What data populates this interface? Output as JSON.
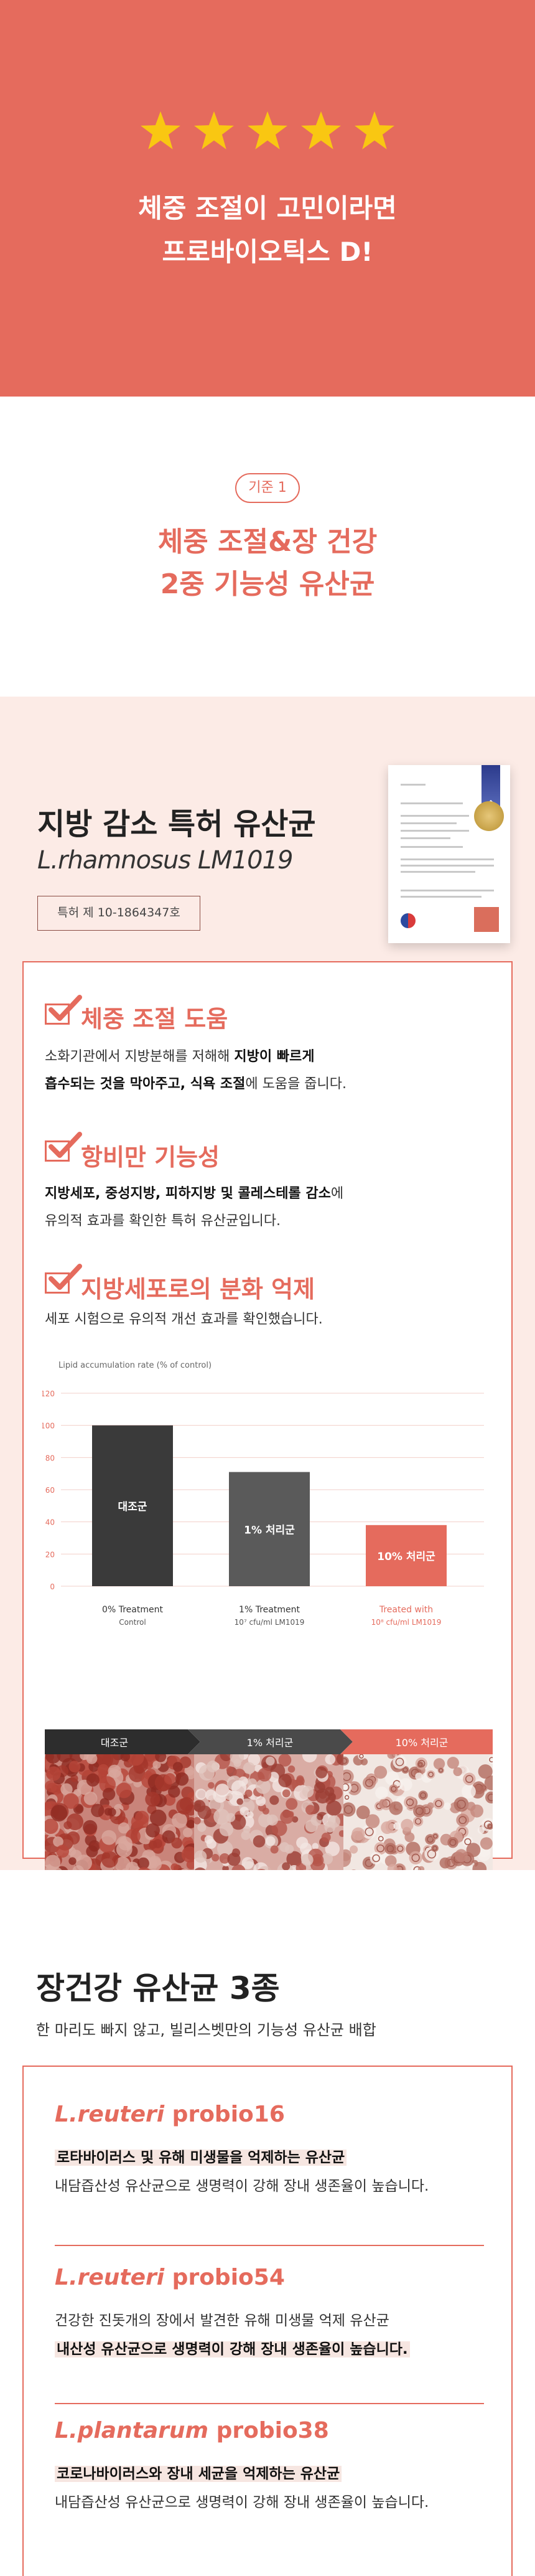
{
  "hero": {
    "rating_stars": 5,
    "line1": "체중 조절이 고민이라면",
    "line2": "프로바이오틱스 D!"
  },
  "criterion": {
    "badge": "기준 1",
    "line1": "체중 조절&장 건강",
    "line2": "2중 기능성 유산균"
  },
  "patent": {
    "heading": "지방 감소 특허 유산균",
    "strain": "L.rhamnosus LM1019",
    "patent_number": "특허 제 10-1864347호",
    "features": [
      {
        "title": "체중 조절 도움",
        "desc_1a": "소화기관에서 지방분해를 저해해 ",
        "desc_1b": "지방이 빠르게",
        "desc_2a": "흡수되는 것을 막아주고, 식욕 조절에 도움을 줍니다.",
        "desc_2b": ""
      },
      {
        "title": "항비만 기능성",
        "desc_1a": "",
        "desc_1b": "지방세포, 중성지방, 피하지방 및 콜레스테롤 감소",
        "desc_1c": "에",
        "desc_2a": "유의적 효과를 확인한 특허 유산균입니다."
      },
      {
        "title": "지방세포로의 분화 억제",
        "desc_1a": "세포 시험으로 유의적 개선 효과를 확인했습니다."
      }
    ],
    "micro_labels": [
      "대조군",
      "1% 처리군",
      "10% 처리군"
    ]
  },
  "chart_data": {
    "type": "bar",
    "ylabel": "Lipid accumulation rate (% of control)",
    "ylim": [
      0,
      120
    ],
    "yticks": [
      0,
      20,
      40,
      60,
      80,
      100,
      120
    ],
    "categories": [
      "대조군",
      "1% 처리군",
      "10% 처리군"
    ],
    "values": [
      100,
      71,
      38
    ],
    "bar_colors": [
      "#3a3a3a",
      "#5a5a5a",
      "#e56b5d"
    ],
    "xlabels": [
      {
        "line1": "0% Treatment",
        "line2": "Control"
      },
      {
        "line1": "1% Treatment",
        "line2": "10⁷ cfu/ml LM1019"
      },
      {
        "line1": "Treated with",
        "line2": "10⁸ cfu/ml LM1019"
      }
    ]
  },
  "strains": {
    "heading": "장건강 유산균 3종",
    "subtitle": "한 마리도 빠지 않고, 빌리스벳만의 기능성 유산균 배합",
    "items": [
      {
        "name_italic": "L.reuteri",
        "name_rest": " probio16",
        "line1": "로타바이러스 및 유해 미생물을 억제하는 유산균",
        "line1_highlight": true,
        "line2": "내담즙산성 유산균으로 생명력이 강해 장내 생존율이 높습니다.",
        "line2_highlight": false
      },
      {
        "name_italic": "L.reuteri",
        "name_rest": " probio54",
        "line1": "건강한 진돗개의 장에서 발견한 유해 미생물 억제 유산균",
        "line1_highlight": false,
        "line2": "내산성 유산균으로 생명력이 강해 장내 생존율이 높습니다.",
        "line2_highlight": true
      },
      {
        "name_italic": "L.plantarum",
        "name_rest": " probio38",
        "line1": "코로나바이러스와 장내 세균을 억제하는 유산균",
        "line1_highlight": true,
        "line2": "내담즙산성 유산균으로 생명력이 강해 장내 생존율이 높습니다.",
        "line2_highlight": false
      }
    ]
  },
  "colors": {
    "accent": "#e56b5d",
    "pink_bg": "#fcebe6",
    "dark_bar": "#3a3a3a"
  }
}
